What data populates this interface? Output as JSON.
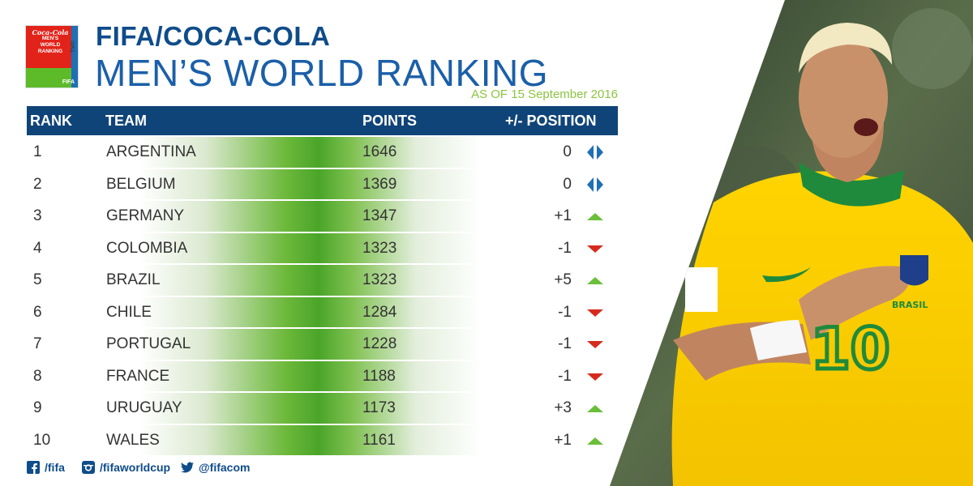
{
  "header": {
    "logo_script": "Coca-Cola",
    "logo_lines": [
      "MEN'S",
      "WORLD",
      "RANKING"
    ],
    "logo_fifa": "FIFA",
    "logo_tm": "TM©",
    "title_line1": "FIFA/COCA-COLA",
    "title_line2": "MEN’S WORLD RANKING",
    "as_of": "AS OF 15 September 2016"
  },
  "table": {
    "columns": {
      "rank": "RANK",
      "team": "TEAM",
      "points": "POINTS",
      "position": "+/- POSITION"
    },
    "rows": [
      {
        "rank": "1",
        "team": "ARGENTINA",
        "points": "1646",
        "change": "0",
        "trend": "same"
      },
      {
        "rank": "2",
        "team": "BELGIUM",
        "points": "1369",
        "change": "0",
        "trend": "same"
      },
      {
        "rank": "3",
        "team": "GERMANY",
        "points": "1347",
        "change": "+1",
        "trend": "up"
      },
      {
        "rank": "4",
        "team": "COLOMBIA",
        "points": "1323",
        "change": "-1",
        "trend": "down"
      },
      {
        "rank": "5",
        "team": "BRAZIL",
        "points": "1323",
        "change": "+5",
        "trend": "up"
      },
      {
        "rank": "6",
        "team": "CHILE",
        "points": "1284",
        "change": "-1",
        "trend": "down"
      },
      {
        "rank": "7",
        "team": "PORTUGAL",
        "points": "1228",
        "change": "-1",
        "trend": "down"
      },
      {
        "rank": "8",
        "team": "FRANCE",
        "points": "1188",
        "change": "-1",
        "trend": "down"
      },
      {
        "rank": "9",
        "team": "URUGUAY",
        "points": "1173",
        "change": "+3",
        "trend": "up"
      },
      {
        "rank": "10",
        "team": "WALES",
        "points": "1161",
        "change": "+1",
        "trend": "up"
      }
    ]
  },
  "footer": {
    "facebook": "/fifa",
    "instagram": "/fifaworldcup",
    "twitter": "@fifacom"
  },
  "photo": {
    "jersey_number": "10",
    "jersey_text": "BRASIL"
  },
  "colors": {
    "header_blue": "#0f4478",
    "title_blue": "#1b5fa8",
    "accent_green": "#8bc53f",
    "up_green": "#6bbf3a",
    "down_red": "#d42b1e",
    "same_blue": "#1f6fb4"
  }
}
